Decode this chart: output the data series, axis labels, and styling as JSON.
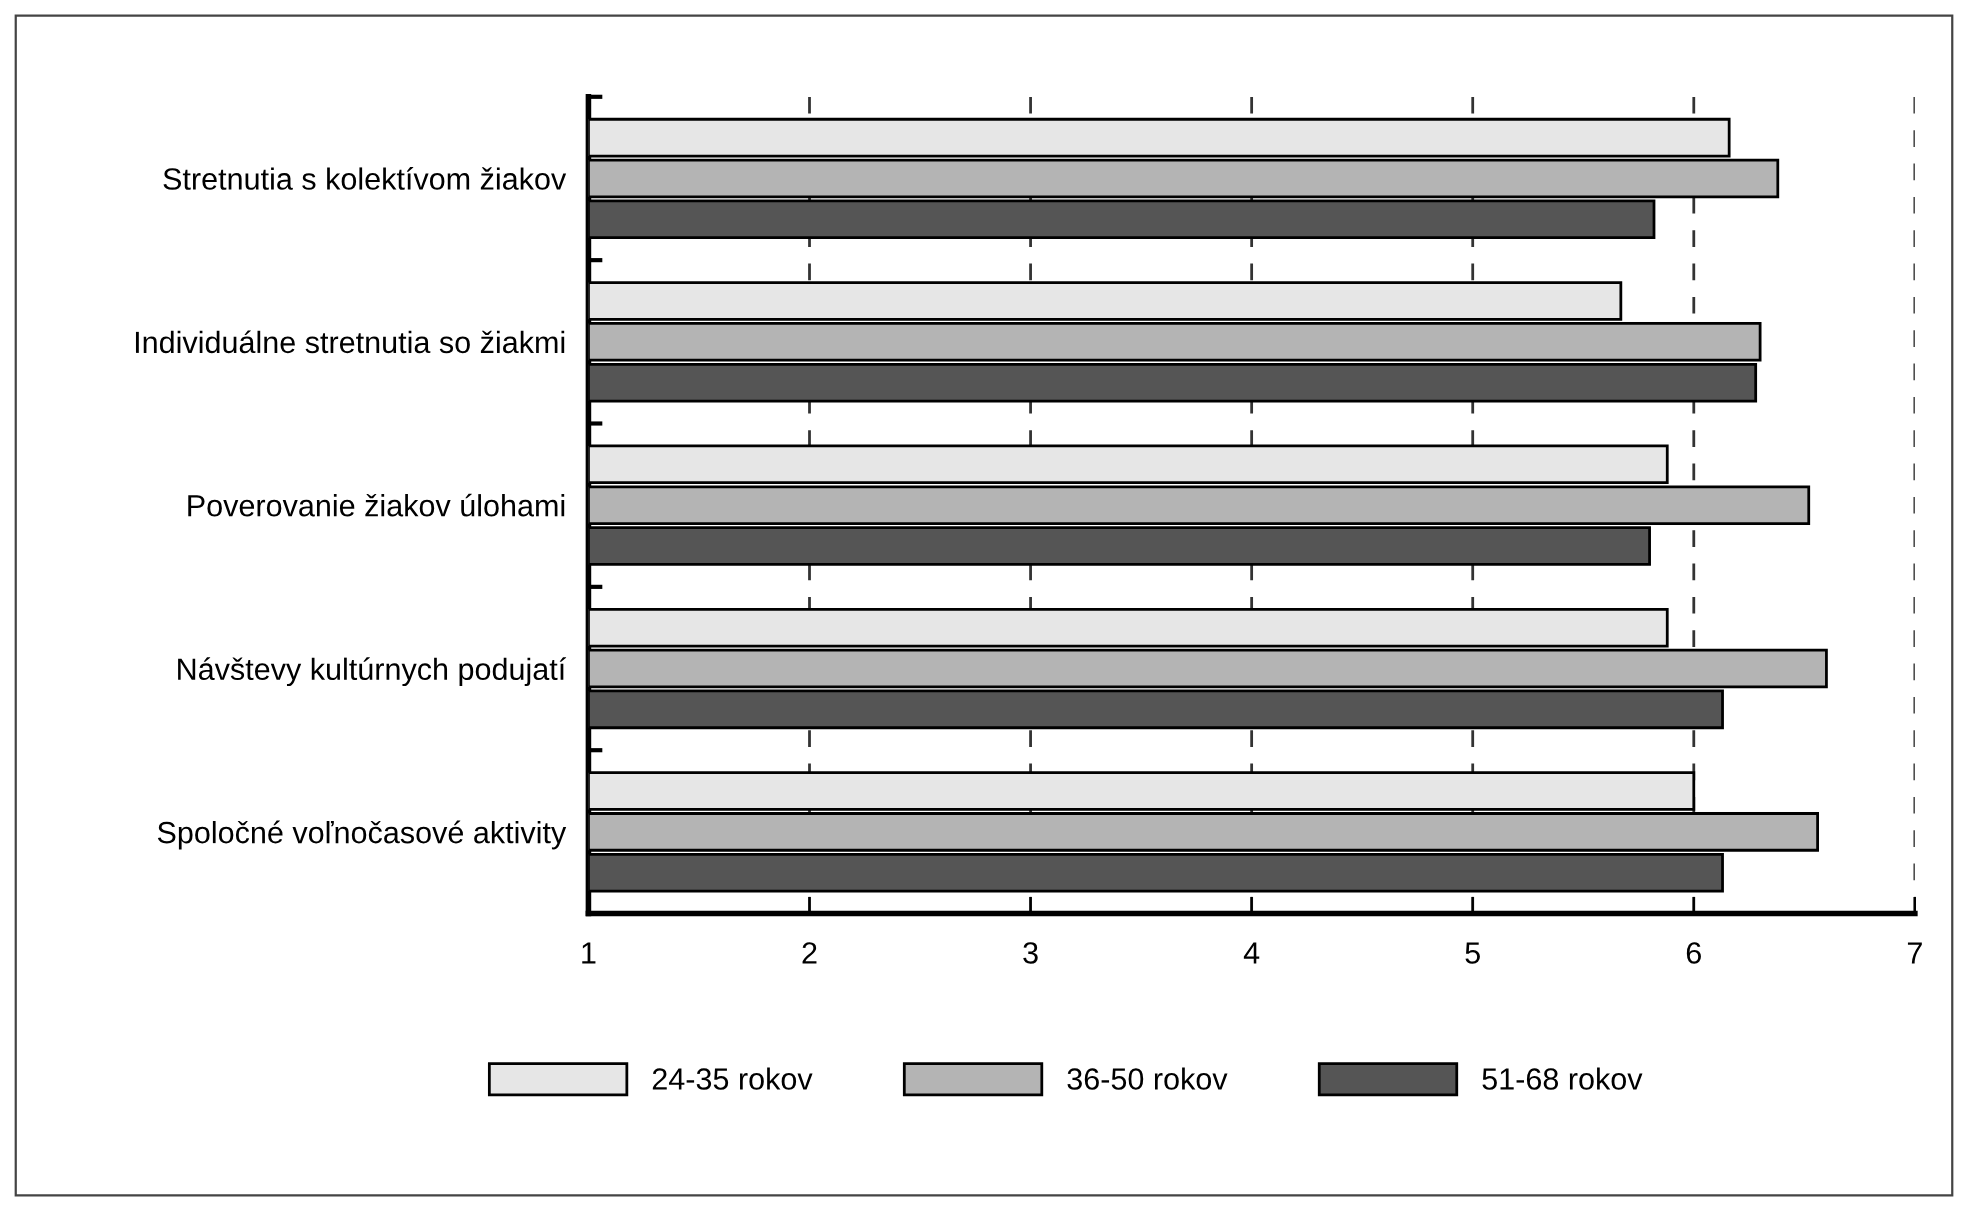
{
  "chart_data": {
    "type": "bar",
    "orientation": "horizontal",
    "categories": [
      "Stretnutia s kolektívom žiakov",
      "Individuálne stretnutia so žiakmi",
      "Poverovanie žiakov úlohami",
      "Návštevy kultúrnych podujatí",
      "Spoločné voľnočasové aktivity"
    ],
    "series": [
      {
        "name": "24-35 rokov",
        "color": "#e6e6e6",
        "values": [
          6.16,
          5.67,
          5.88,
          5.88,
          6.0
        ]
      },
      {
        "name": "36-50 rokov",
        "color": "#b4b4b4",
        "values": [
          6.38,
          6.3,
          6.52,
          6.6,
          6.56
        ]
      },
      {
        "name": "51-68 rokov",
        "color": "#555555",
        "values": [
          5.82,
          6.28,
          5.8,
          6.13,
          6.13
        ]
      }
    ],
    "xlim": [
      1,
      7
    ],
    "xticks": [
      1,
      2,
      3,
      4,
      5,
      6,
      7
    ],
    "grid": "x",
    "legend": "bottom"
  }
}
